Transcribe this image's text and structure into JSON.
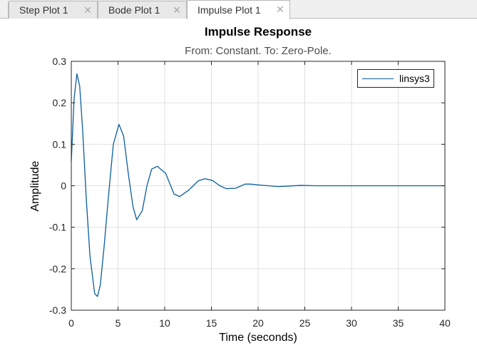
{
  "tabs": [
    {
      "label": "Step Plot 1",
      "active": false
    },
    {
      "label": "Bode Plot 1",
      "active": false
    },
    {
      "label": "Impulse Plot 1",
      "active": true
    }
  ],
  "icons": {
    "tab_close": "close-icon"
  },
  "colors": {
    "line": "#0a5e9c",
    "grid": "#e0e0e0",
    "axis": "#262626"
  },
  "chart_data": {
    "type": "line",
    "title": "Impulse Response",
    "subtitle": "From: Constant.  To: Zero-Pole.",
    "xlabel": "Time (seconds)",
    "ylabel": "Amplitude",
    "xlim": [
      0,
      40
    ],
    "ylim": [
      -0.3,
      0.3
    ],
    "xticks": [
      0,
      5,
      10,
      15,
      20,
      25,
      30,
      35,
      40
    ],
    "xtick_labels": [
      "0",
      "5",
      "10",
      "15",
      "20",
      "25",
      "30",
      "35",
      "40"
    ],
    "yticks": [
      -0.3,
      -0.2,
      -0.1,
      0,
      0.1,
      0.2,
      0.3
    ],
    "ytick_labels": [
      "-0.3",
      "-0.2",
      "-0.1",
      "0",
      "0.1",
      "0.2",
      "0.3"
    ],
    "grid": true,
    "legend_position": "top-right",
    "series": [
      {
        "name": "linsys3",
        "x": [
          0,
          0.3,
          0.6,
          0.9,
          1.2,
          1.6,
          2.0,
          2.5,
          2.8,
          3.1,
          3.5,
          4.0,
          4.5,
          5.1,
          5.6,
          6.1,
          6.6,
          7.0,
          7.6,
          8.1,
          8.6,
          9.2,
          10.1,
          11.0,
          11.6,
          12.6,
          13.6,
          14.3,
          15.1,
          15.9,
          16.6,
          17.6,
          18.6,
          19.2,
          20.1,
          21.1,
          22.1,
          23.1,
          24.6,
          26.1,
          27.6,
          30.0,
          35.0,
          40.0
        ],
        "y": [
          0.06,
          0.21,
          0.27,
          0.24,
          0.14,
          -0.03,
          -0.17,
          -0.26,
          -0.267,
          -0.24,
          -0.15,
          -0.02,
          0.1,
          0.148,
          0.12,
          0.03,
          -0.05,
          -0.082,
          -0.06,
          0.0,
          0.04,
          0.047,
          0.03,
          -0.02,
          -0.026,
          -0.01,
          0.012,
          0.017,
          0.013,
          0.0,
          -0.007,
          -0.006,
          0.004,
          0.004,
          0.002,
          0.0,
          -0.002,
          -0.001,
          0.001,
          0.0,
          0.0,
          0.0,
          0.0,
          0.0
        ]
      }
    ]
  }
}
